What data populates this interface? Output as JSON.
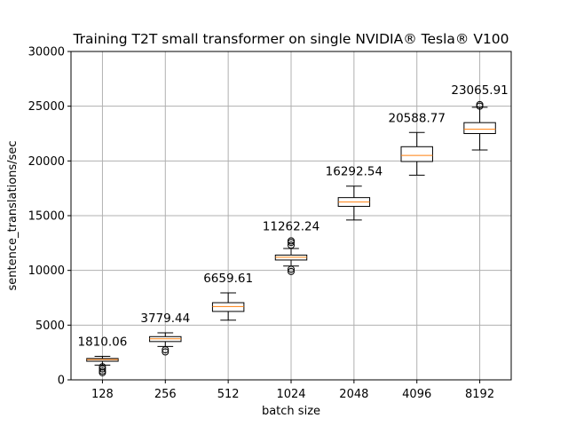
{
  "chart_data": {
    "type": "box",
    "title": "Training T2T small transformer on single NVIDIA® Tesla® V100",
    "xlabel": "batch size",
    "ylabel": "sentence_translations/sec",
    "ylim": [
      0,
      30000
    ],
    "yticks": [
      "0",
      "5000",
      "10000",
      "15000",
      "20000",
      "25000",
      "30000"
    ],
    "grid": true,
    "categories": [
      "128",
      "256",
      "512",
      "1024",
      "2048",
      "4096",
      "8192"
    ],
    "boxes": [
      {
        "category": "128",
        "label": "1810.06",
        "whisker_low": 1350,
        "q1": 1700,
        "median": 1850,
        "q3": 1950,
        "whisker_high": 2150,
        "outliers": [
          1200,
          1000,
          800,
          650
        ]
      },
      {
        "category": "256",
        "label": "3779.44",
        "whisker_low": 3050,
        "q1": 3500,
        "median": 3750,
        "q3": 3950,
        "whisker_high": 4300,
        "outliers": [
          2750,
          2550
        ]
      },
      {
        "category": "512",
        "label": "6659.61",
        "whisker_low": 5450,
        "q1": 6250,
        "median": 6700,
        "q3": 7050,
        "whisker_high": 7950,
        "outliers": []
      },
      {
        "category": "1024",
        "label": "11262.24",
        "whisker_low": 10400,
        "q1": 10950,
        "median": 11200,
        "q3": 11400,
        "whisker_high": 12000,
        "outliers": [
          12550,
          12700,
          12300,
          10100,
          9900
        ]
      },
      {
        "category": "2048",
        "label": "16292.54",
        "whisker_low": 14600,
        "q1": 15850,
        "median": 16250,
        "q3": 16650,
        "whisker_high": 17700,
        "outliers": []
      },
      {
        "category": "4096",
        "label": "20588.77",
        "whisker_low": 18700,
        "q1": 19950,
        "median": 20500,
        "q3": 21300,
        "whisker_high": 22600,
        "outliers": []
      },
      {
        "category": "8192",
        "label": "23065.91",
        "whisker_low": 21000,
        "q1": 22500,
        "median": 22900,
        "q3": 23500,
        "whisker_high": 24900,
        "outliers": [
          25000,
          25150
        ]
      }
    ],
    "colors": {
      "box": "#000000",
      "median": "#ff7f0e",
      "grid": "#b0b0b0"
    }
  }
}
